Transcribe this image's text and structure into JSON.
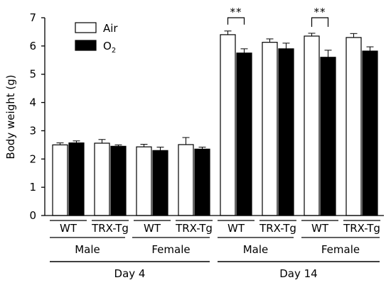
{
  "chart_data": {
    "type": "bar",
    "ylabel": "Body weight (g)",
    "ylim": [
      0,
      7
    ],
    "yticks": [
      0,
      1,
      2,
      3,
      4,
      5,
      6,
      7
    ],
    "legend_position": "top-left",
    "legend": [
      {
        "label": "Air",
        "fill": "#ffffff"
      },
      {
        "label": "O",
        "sub": "2",
        "fill": "#000000"
      }
    ],
    "series": [
      {
        "name": "Air",
        "color": "#ffffff"
      },
      {
        "name": "O2",
        "color": "#000000"
      }
    ],
    "genotype_labels": [
      "WT",
      "TRX-Tg",
      "WT",
      "TRX-Tg",
      "WT",
      "TRX-Tg",
      "WT",
      "TRX-Tg"
    ],
    "sex_labels": [
      "Male",
      "Female",
      "Male",
      "Female"
    ],
    "day_labels": [
      "Day 4",
      "Day 14"
    ],
    "groups": [
      {
        "day": "Day 4",
        "sex": "Male",
        "genotype": "WT",
        "air": 2.5,
        "air_err": 0.07,
        "o2": 2.57,
        "o2_err": 0.07
      },
      {
        "day": "Day 4",
        "sex": "Male",
        "genotype": "TRX-Tg",
        "air": 2.56,
        "air_err": 0.13,
        "o2": 2.45,
        "o2_err": 0.05
      },
      {
        "day": "Day 4",
        "sex": "Female",
        "genotype": "WT",
        "air": 2.43,
        "air_err": 0.09,
        "o2": 2.3,
        "o2_err": 0.12
      },
      {
        "day": "Day 4",
        "sex": "Female",
        "genotype": "TRX-Tg",
        "air": 2.51,
        "air_err": 0.25,
        "o2": 2.35,
        "o2_err": 0.07
      },
      {
        "day": "Day 14",
        "sex": "Male",
        "genotype": "WT",
        "air": 6.4,
        "air_err": 0.13,
        "o2": 5.75,
        "o2_err": 0.15
      },
      {
        "day": "Day 14",
        "sex": "Male",
        "genotype": "TRX-Tg",
        "air": 6.13,
        "air_err": 0.12,
        "o2": 5.9,
        "o2_err": 0.2
      },
      {
        "day": "Day 14",
        "sex": "Female",
        "genotype": "WT",
        "air": 6.35,
        "air_err": 0.1,
        "o2": 5.6,
        "o2_err": 0.25
      },
      {
        "day": "Day 14",
        "sex": "Female",
        "genotype": "TRX-Tg",
        "air": 6.3,
        "air_err": 0.14,
        "o2": 5.82,
        "o2_err": 0.15
      }
    ],
    "significance": [
      {
        "group_index": 4,
        "label": "**"
      },
      {
        "group_index": 6,
        "label": "**"
      }
    ]
  }
}
